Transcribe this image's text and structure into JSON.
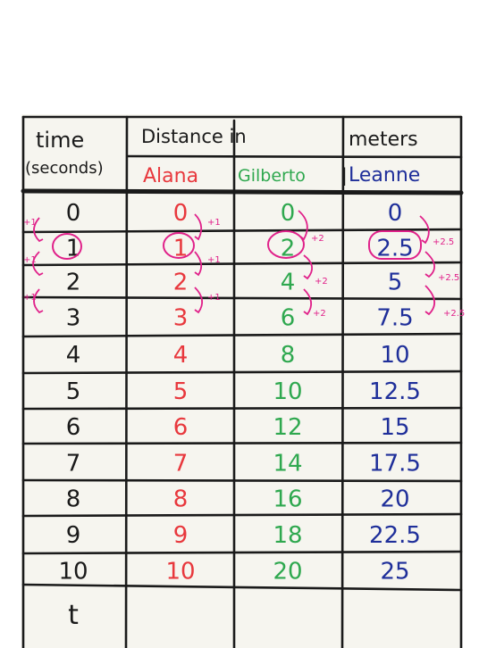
{
  "header": {
    "time_label": "time",
    "seconds_label": "(seconds)",
    "distance_label": "Distance in",
    "meters_label": "meters",
    "people": [
      "Alana",
      "Gilberto",
      "Leanne"
    ]
  },
  "rows": [
    {
      "time": "0",
      "alana": "0",
      "gilberto": "0",
      "leanne": "0"
    },
    {
      "time": "1",
      "alana": "1",
      "gilberto": "2",
      "leanne": "2.5"
    },
    {
      "time": "2",
      "alana": "2",
      "gilberto": "4",
      "leanne": "5"
    },
    {
      "time": "3",
      "alana": "3",
      "gilberto": "6",
      "leanne": "7.5"
    },
    {
      "time": "4",
      "alana": "4",
      "gilberto": "8",
      "leanne": "10"
    },
    {
      "time": "5",
      "alana": "5",
      "gilberto": "10",
      "leanne": "12.5"
    },
    {
      "time": "6",
      "alana": "6",
      "gilberto": "12",
      "leanne": "15"
    },
    {
      "time": "7",
      "alana": "7",
      "gilberto": "14",
      "leanne": "17.5"
    },
    {
      "time": "8",
      "alana": "8",
      "gilberto": "16",
      "leanne": "20"
    },
    {
      "time": "9",
      "alana": "9",
      "gilberto": "18",
      "leanne": "22.5"
    },
    {
      "time": "10",
      "alana": "10",
      "gilberto": "20",
      "leanne": "25"
    },
    {
      "time": "t",
      "alana": "",
      "gilberto": "",
      "leanne": ""
    }
  ],
  "annotations": {
    "time_step": "+1",
    "alana_step": "+1",
    "gilberto_step": "+2",
    "leanne_step": "+2.5"
  },
  "colors": {
    "ink": "#1a1a1a",
    "alana": "#e8383d",
    "gilberto": "#2fa84f",
    "leanne": "#1f2f9a",
    "annotation": "#e0218a"
  }
}
